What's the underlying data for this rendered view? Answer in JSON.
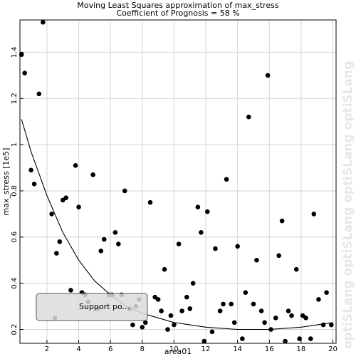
{
  "chart_data": {
    "type": "scatter",
    "title": "Moving Least Squares approximation of max_stress",
    "subtitle": "Coefficient of Prognosis = 58 %",
    "xlabel": "area01",
    "ylabel": "max_stress [1e5]",
    "xlim": [
      0.3,
      20.2
    ],
    "ylim": [
      0.14,
      1.54
    ],
    "xticks": [
      "2",
      "4",
      "6",
      "8",
      "10",
      "12",
      "14",
      "16",
      "18",
      "20"
    ],
    "yticks": [
      "0.2",
      "0.4",
      "0.6",
      "0.8",
      "1",
      "1.2",
      "1.4"
    ],
    "grid": true,
    "watermark": "optiSLang",
    "tooltip": "Support po...",
    "points": [
      [
        0.4,
        1.39
      ],
      [
        0.6,
        1.31
      ],
      [
        1.75,
        1.53
      ],
      [
        1.5,
        1.22
      ],
      [
        1.0,
        0.89
      ],
      [
        1.2,
        0.83
      ],
      [
        2.3,
        0.7
      ],
      [
        2.6,
        0.53
      ],
      [
        2.8,
        0.58
      ],
      [
        3.0,
        0.76
      ],
      [
        3.2,
        0.77
      ],
      [
        3.5,
        0.37
      ],
      [
        3.8,
        0.91
      ],
      [
        4.0,
        0.73
      ],
      [
        4.2,
        0.36
      ],
      [
        4.4,
        0.35
      ],
      [
        4.6,
        0.32
      ],
      [
        4.9,
        0.87
      ],
      [
        5.2,
        0.29
      ],
      [
        5.4,
        0.54
      ],
      [
        5.6,
        0.59
      ],
      [
        5.9,
        0.35
      ],
      [
        6.1,
        0.35
      ],
      [
        6.3,
        0.62
      ],
      [
        6.5,
        0.57
      ],
      [
        6.7,
        0.35
      ],
      [
        6.9,
        0.8
      ],
      [
        7.2,
        0.29
      ],
      [
        7.4,
        0.22
      ],
      [
        7.6,
        0.3
      ],
      [
        7.8,
        0.33
      ],
      [
        8.0,
        0.21
      ],
      [
        8.2,
        0.23
      ],
      [
        8.5,
        0.75
      ],
      [
        8.8,
        0.34
      ],
      [
        9.0,
        0.33
      ],
      [
        9.2,
        0.28
      ],
      [
        9.4,
        0.46
      ],
      [
        9.6,
        0.2
      ],
      [
        9.8,
        0.26
      ],
      [
        10.0,
        0.22
      ],
      [
        10.3,
        0.57
      ],
      [
        10.5,
        0.28
      ],
      [
        10.8,
        0.34
      ],
      [
        11.0,
        0.29
      ],
      [
        11.2,
        0.4
      ],
      [
        11.5,
        0.73
      ],
      [
        11.7,
        0.62
      ],
      [
        11.9,
        0.13
      ],
      [
        12.1,
        0.71
      ],
      [
        12.4,
        0.19
      ],
      [
        12.6,
        0.55
      ],
      [
        12.9,
        0.28
      ],
      [
        13.1,
        0.31
      ],
      [
        13.3,
        0.85
      ],
      [
        13.6,
        0.31
      ],
      [
        13.8,
        0.23
      ],
      [
        14.0,
        0.56
      ],
      [
        14.3,
        0.16
      ],
      [
        14.5,
        0.36
      ],
      [
        14.7,
        1.12
      ],
      [
        15.0,
        0.31
      ],
      [
        15.2,
        0.5
      ],
      [
        15.5,
        0.28
      ],
      [
        15.7,
        0.23
      ],
      [
        15.9,
        1.3
      ],
      [
        16.1,
        0.2
      ],
      [
        16.4,
        0.25
      ],
      [
        16.6,
        0.52
      ],
      [
        16.8,
        0.67
      ],
      [
        17.0,
        0.12
      ],
      [
        17.2,
        0.28
      ],
      [
        17.4,
        0.26
      ],
      [
        17.7,
        0.46
      ],
      [
        17.9,
        0.16
      ],
      [
        18.1,
        0.26
      ],
      [
        18.3,
        0.25
      ],
      [
        18.6,
        0.16
      ],
      [
        18.8,
        0.7
      ],
      [
        19.1,
        0.33
      ],
      [
        19.4,
        0.22
      ],
      [
        19.6,
        0.36
      ],
      [
        19.9,
        0.22
      ],
      [
        2.5,
        0.25
      ]
    ],
    "fit_curve": [
      [
        0.4,
        1.11
      ],
      [
        1.0,
        0.97
      ],
      [
        2.0,
        0.78
      ],
      [
        3.0,
        0.62
      ],
      [
        4.0,
        0.5
      ],
      [
        5.0,
        0.41
      ],
      [
        6.0,
        0.35
      ],
      [
        7.0,
        0.3
      ],
      [
        8.0,
        0.27
      ],
      [
        9.0,
        0.25
      ],
      [
        10.0,
        0.23
      ],
      [
        11.0,
        0.22
      ],
      [
        12.0,
        0.21
      ],
      [
        13.0,
        0.205
      ],
      [
        14.0,
        0.2
      ],
      [
        15.0,
        0.2
      ],
      [
        16.0,
        0.2
      ],
      [
        17.0,
        0.205
      ],
      [
        18.0,
        0.21
      ],
      [
        19.0,
        0.22
      ],
      [
        20.0,
        0.23
      ]
    ]
  }
}
